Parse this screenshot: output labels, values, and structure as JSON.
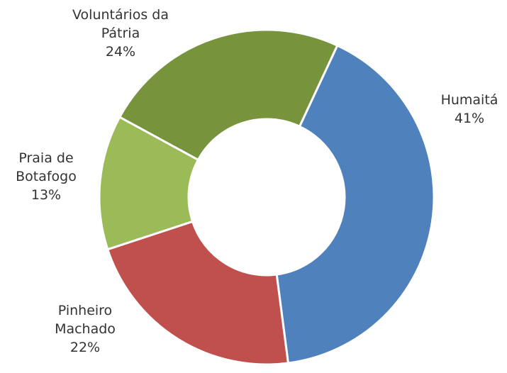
{
  "chart_data": {
    "type": "pie",
    "categories": [
      "Humaitá",
      "Pinheiro Machado",
      "Praia de Botafogo",
      "Voluntários da Pátria"
    ],
    "values": [
      41,
      22,
      13,
      24
    ],
    "value_labels": [
      "41%",
      "22%",
      "13%",
      "24%"
    ],
    "colors": [
      "#4f81bd",
      "#c0504d",
      "#9bbb59",
      "#77933c"
    ],
    "donut": true
  }
}
